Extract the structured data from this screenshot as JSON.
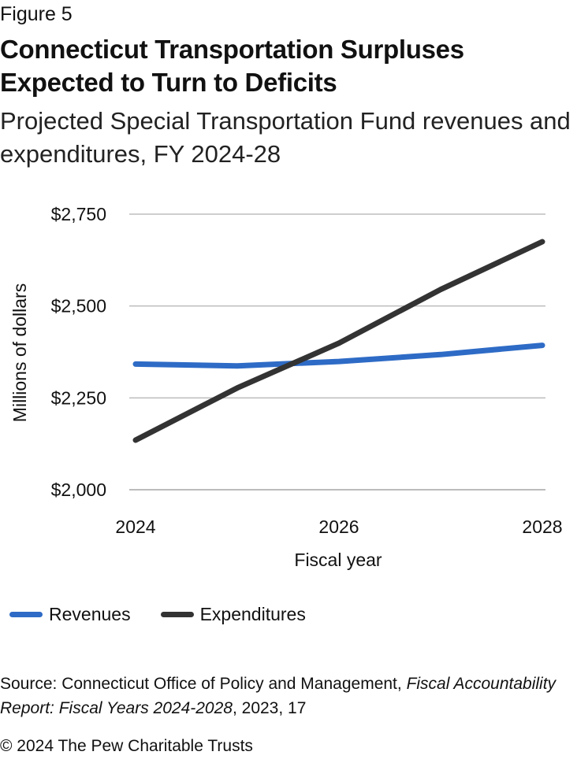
{
  "figure_label": "Figure 5",
  "title": "Connecticut Transportation Surpluses Expected to Turn to Deficits",
  "subtitle": "Projected Special Transportation Fund revenues and expenditures, FY 2024-28",
  "chart_data": {
    "type": "line",
    "title": "Connecticut Transportation Surpluses Expected to Turn to Deficits",
    "subtitle": "Projected Special Transportation Fund revenues and expenditures, FY 2024-28",
    "xlabel": "Fiscal year",
    "ylabel": "Millions of dollars",
    "x": [
      2024,
      2025,
      2026,
      2027,
      2028
    ],
    "x_tick_labels": [
      "2024",
      "2026",
      "2028"
    ],
    "y_ticks": [
      2000,
      2250,
      2500,
      2750
    ],
    "y_tick_labels": [
      "$2,000",
      "$2,250",
      "$2,500",
      "$2,750"
    ],
    "ylim": [
      2000,
      2750
    ],
    "grid": "horizontal",
    "legend_position": "bottom",
    "series": [
      {
        "name": "Revenues",
        "color": "#2e6bc6",
        "values": [
          2342,
          2337,
          2349,
          2368,
          2393
        ]
      },
      {
        "name": "Expenditures",
        "color": "#333333",
        "values": [
          2135,
          2277,
          2399,
          2545,
          2675
        ]
      }
    ]
  },
  "source": {
    "prefix": "Source: Connecticut Office of Policy and Management, ",
    "italic": "Fiscal Accountability Report: Fiscal Years 2024-2028",
    "suffix": ", 2023, 17"
  },
  "copyright": "© 2024 The Pew Charitable Trusts"
}
